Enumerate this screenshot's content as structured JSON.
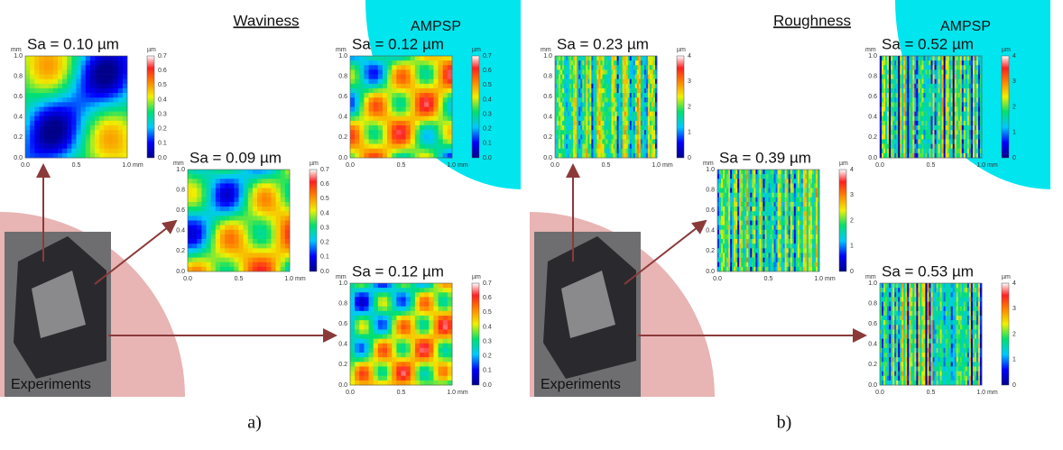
{
  "panels": [
    {
      "label": "a)",
      "title": "Waviness",
      "ampsp": "AMPSP",
      "experiments": "Experiments",
      "maps": [
        {
          "sa": "Sa = 0.10 µm"
        },
        {
          "sa": "Sa = 0.09 µm"
        },
        {
          "sa": "Sa = 0.12 µm"
        },
        {
          "sa": "Sa = 0.12 µm"
        }
      ],
      "colorbar_ticks": [
        "0.7",
        "0.6",
        "0.5",
        "0.4",
        "0.3",
        "0.2",
        "0.1",
        "0.0"
      ]
    },
    {
      "label": "b)",
      "title": "Roughness",
      "ampsp": "AMPSP",
      "experiments": "Experiments",
      "maps": [
        {
          "sa": "Sa = 0.23 µm"
        },
        {
          "sa": "Sa = 0.39 µm"
        },
        {
          "sa": "Sa = 0.52 µm"
        },
        {
          "sa": "Sa = 0.53 µm"
        }
      ],
      "colorbar_ticks": [
        "4",
        "3",
        "2",
        "1",
        "0"
      ]
    }
  ],
  "axes": {
    "y_unit": "mm",
    "y_ticks": [
      "1.0",
      "0.8",
      "0.6",
      "0.4",
      "0.2",
      "0.0"
    ],
    "x_ticks": [
      "0.0",
      "0.5",
      "1.0 mm"
    ],
    "colorbar_unit": "µm"
  }
}
